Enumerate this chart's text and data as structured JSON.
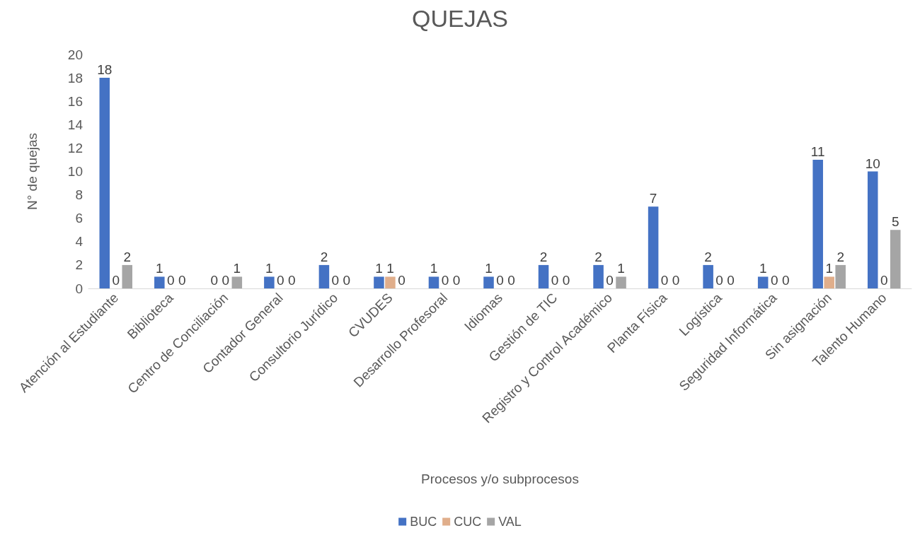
{
  "chart_data": {
    "type": "bar",
    "title": "QUEJAS",
    "xlabel": "Procesos y/o subprocesos",
    "ylabel": "N° de quejas",
    "categories": [
      "Atención al Estudiante",
      "Biblioteca",
      "Centro de Conciliación",
      "Contador General",
      "Consultorio Jurídico",
      "CVUDES",
      "Desarrollo Profesoral",
      "Idiomas",
      "Gestión de TIC",
      "Registro y Control Académico",
      "Planta Física",
      "Logística",
      "Seguridad Informática",
      "Sin asignación",
      "Talento Humano"
    ],
    "series": [
      {
        "name": "BUC",
        "color": "#4472c4",
        "values": [
          18,
          1,
          0,
          1,
          2,
          1,
          1,
          1,
          2,
          2,
          7,
          2,
          1,
          11,
          10
        ]
      },
      {
        "name": "CUC",
        "color": "#e0ae8b",
        "values": [
          0,
          0,
          0,
          0,
          0,
          1,
          0,
          0,
          0,
          0,
          0,
          0,
          0,
          1,
          0
        ]
      },
      {
        "name": "VAL",
        "color": "#a5a5a5",
        "values": [
          2,
          0,
          1,
          0,
          0,
          0,
          0,
          0,
          0,
          1,
          0,
          0,
          0,
          2,
          5
        ]
      }
    ],
    "ylim": [
      0,
      20
    ],
    "yticks": [
      0,
      2,
      4,
      6,
      8,
      10,
      12,
      14,
      16,
      18,
      20
    ],
    "grid": false,
    "legend": "bottom",
    "data_labels": true
  }
}
